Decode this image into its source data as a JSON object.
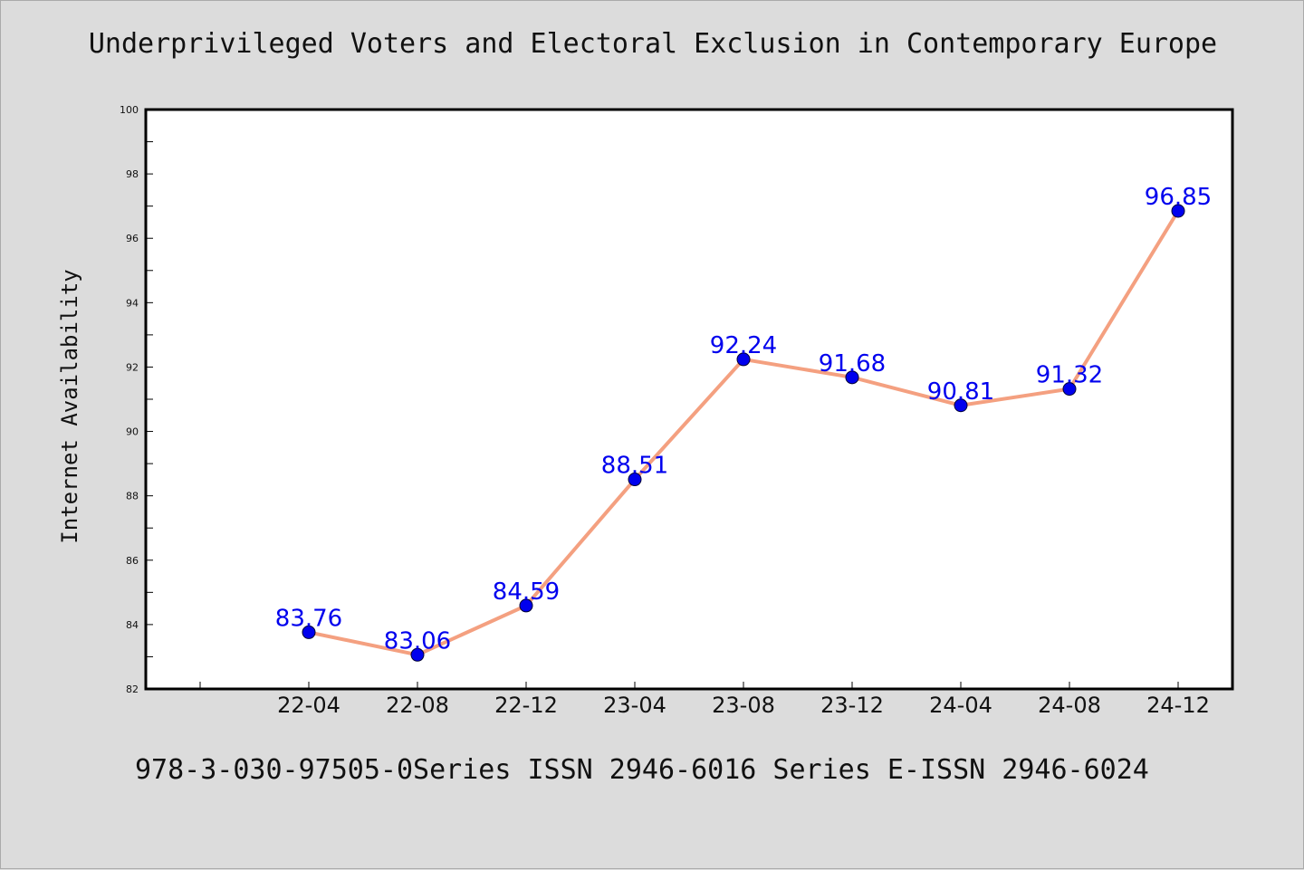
{
  "page_title": "Underprivileged Voters and Electoral Exclusion in Contemporary Europe",
  "footer": "978-3-030-97505-0Series ISSN 2946-6016 Series E-ISSN 2946-6024",
  "colors": {
    "background": "#dcdcdc",
    "plot_background": "#ffffff",
    "line": "#f4a080",
    "marker": "#0000ee",
    "data_label": "#0000ee"
  },
  "chart_data": {
    "type": "line",
    "title": "Underprivileged Voters and Electoral Exclusion in Contemporary Europe",
    "xlabel": "",
    "ylabel": "Internet Availability",
    "categories": [
      "22-04",
      "22-08",
      "22-12",
      "23-04",
      "23-08",
      "23-12",
      "24-04",
      "24-08",
      "24-12"
    ],
    "series": [
      {
        "values": [
          83.76,
          83.06,
          84.59,
          88.51,
          92.24,
          91.68,
          90.81,
          91.32,
          96.85
        ]
      }
    ],
    "data_labels": [
      "83.76",
      "83.06",
      "84.59",
      "88.51",
      "92.24",
      "91.68",
      "90.81",
      "91.32",
      "96.85"
    ],
    "ylim": [
      82,
      100
    ],
    "yticks": [
      82,
      84,
      86,
      88,
      90,
      92,
      94,
      96,
      98,
      100
    ],
    "grid": false,
    "legend": "none"
  }
}
